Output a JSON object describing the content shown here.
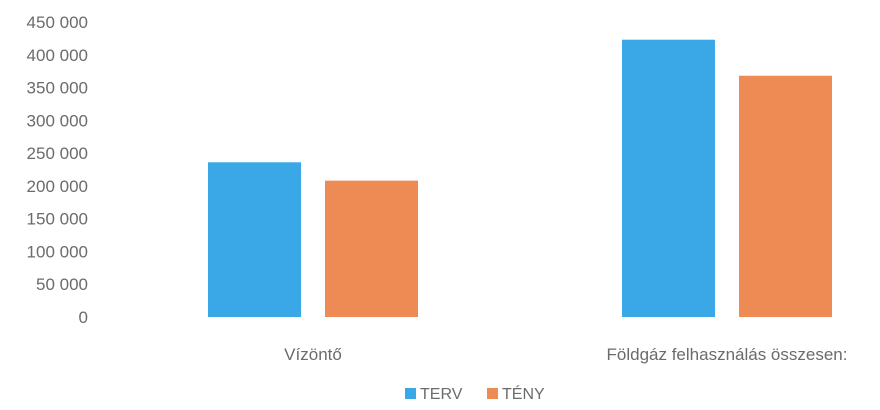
{
  "chart_data": {
    "type": "bar",
    "categories": [
      "Vízöntő",
      "Földgáz felhasználás összesen:"
    ],
    "series": [
      {
        "name": "TERV",
        "values": [
          236000,
          423000
        ],
        "color": "#3aa7e6"
      },
      {
        "name": "TÉNY",
        "values": [
          208000,
          368000
        ],
        "color": "#ee8a54"
      }
    ],
    "y_ticks": [
      "0",
      "50 000",
      "100 000",
      "150 000",
      "200 000",
      "250 000",
      "300 000",
      "350 000",
      "400 000",
      "450 000"
    ],
    "ylim": [
      0,
      450000
    ],
    "grid": false,
    "legend_position": "bottom",
    "title": "",
    "xlabel": "",
    "ylabel": ""
  }
}
